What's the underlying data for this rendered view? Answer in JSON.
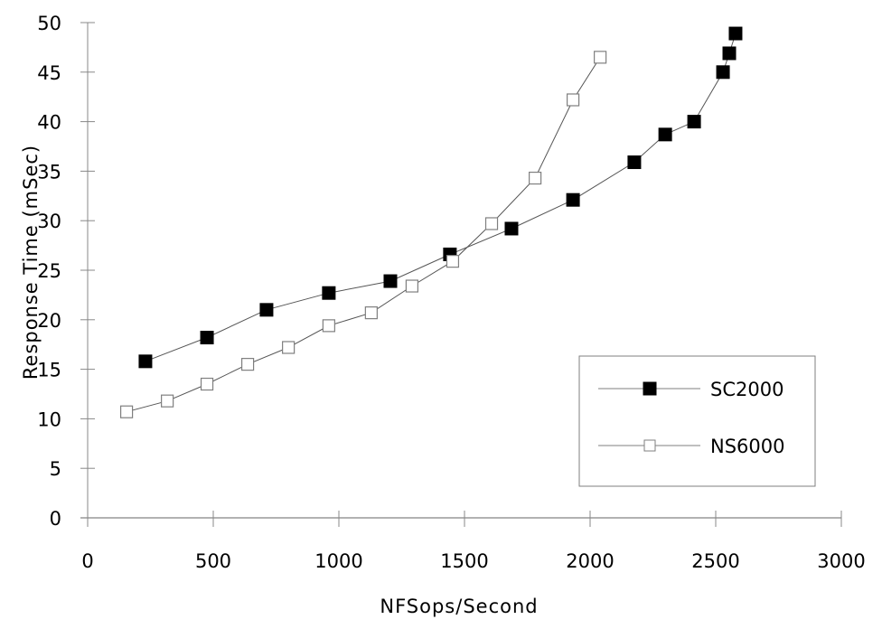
{
  "chart_data": {
    "type": "line",
    "title": "",
    "xlabel": "NFSops/Second",
    "ylabel": "Response  Time  (mSec)",
    "xlim": [
      0,
      3000
    ],
    "ylim": [
      0,
      50
    ],
    "x_ticks": [
      0,
      500,
      1000,
      1500,
      2000,
      2500,
      3000
    ],
    "y_ticks": [
      0,
      5,
      10,
      15,
      20,
      25,
      30,
      35,
      40,
      45,
      50
    ],
    "grid": false,
    "legend_position": "lower right (inside)",
    "series": [
      {
        "name": "SC2000",
        "marker": "filled-square",
        "color": "#000000",
        "x": [
          230,
          475,
          712,
          960,
          1205,
          1442,
          1687,
          1932,
          2176,
          2299,
          2414,
          2529,
          2554,
          2579
        ],
        "y": [
          15.8,
          18.2,
          21.0,
          22.7,
          23.9,
          26.6,
          29.2,
          32.1,
          35.9,
          38.7,
          40.0,
          45.0,
          46.9,
          48.9
        ]
      },
      {
        "name": "NS6000",
        "marker": "hollow-square",
        "color": "#7f7f7f",
        "x": [
          155,
          317,
          475,
          637,
          799,
          960,
          1129,
          1291,
          1453,
          1608,
          1781,
          1932,
          2040
        ],
        "y": [
          10.7,
          11.8,
          13.5,
          15.5,
          17.2,
          19.4,
          20.7,
          23.4,
          25.9,
          29.7,
          34.3,
          42.2,
          46.5
        ]
      }
    ]
  },
  "legend": {
    "items": [
      {
        "label": "SC2000"
      },
      {
        "label": "NS6000"
      }
    ]
  },
  "axes": {
    "xlabel": "NFSops/Second",
    "ylabel": "Response  Time  (mSec)"
  }
}
